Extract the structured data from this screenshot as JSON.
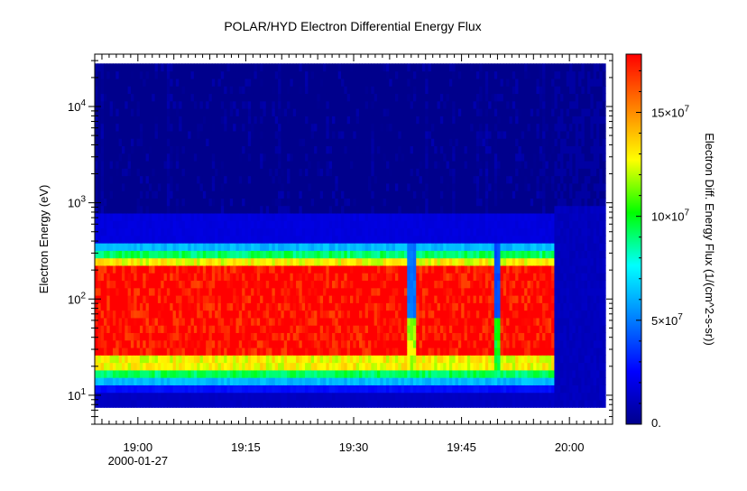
{
  "chart_data": {
    "type": "heatmap",
    "title": "POLAR/HYD  Electron Differential Energy Flux",
    "xlabel": "",
    "ylabel": "Electron Energy (eV)",
    "colorbar_label": "Electron Diff. Energy Flux (1/(cm^2-s-sr))",
    "x_range": [
      "18:54",
      "20:06"
    ],
    "y_range": [
      5,
      35000
    ],
    "y_scale": "log",
    "x_ticks": [
      {
        "time": "19:00",
        "label": "19:00",
        "sublabel": "2000-01-27"
      },
      {
        "time": "19:15",
        "label": "19:15",
        "sublabel": ""
      },
      {
        "time": "19:30",
        "label": "19:30",
        "sublabel": ""
      },
      {
        "time": "19:45",
        "label": "19:45",
        "sublabel": ""
      },
      {
        "time": "20:00",
        "label": "20:00",
        "sublabel": ""
      }
    ],
    "y_ticks": [
      {
        "value": 10,
        "base": "10",
        "exp": "1"
      },
      {
        "value": 100,
        "base": "10",
        "exp": "2"
      },
      {
        "value": 1000,
        "base": "10",
        "exp": "3"
      },
      {
        "value": 10000,
        "base": "10",
        "exp": "4"
      }
    ],
    "colorbar": {
      "min": 0,
      "max": 178000000,
      "ticks": [
        {
          "value": 0,
          "base": "0.",
          "exp": ""
        },
        {
          "value": 50000000,
          "base": "5×10",
          "exp": "7"
        },
        {
          "value": 100000000,
          "base": "10×10",
          "exp": "7"
        },
        {
          "value": 150000000,
          "base": "15×10",
          "exp": "7"
        }
      ],
      "colormap": [
        "#00008c",
        "#0000ff",
        "#0080ff",
        "#00ffff",
        "#00ff00",
        "#ffff00",
        "#ff8000",
        "#ff0000"
      ]
    },
    "data_extent": {
      "t_start": "18:54",
      "t_end": "20:05",
      "e_min": 7.5,
      "e_max": 28000,
      "instrument_end": "19:58"
    },
    "energy_bands_eV": [
      {
        "e_low": 7.5,
        "e_high": 10,
        "flux": 12000000
      },
      {
        "e_low": 10,
        "e_high": 12,
        "flux": 28000000
      },
      {
        "e_low": 12,
        "e_high": 15,
        "flux": 62000000
      },
      {
        "e_low": 15,
        "e_high": 19,
        "flux": 92000000
      },
      {
        "e_low": 19,
        "e_high": 24,
        "flux": 128000000
      },
      {
        "e_low": 24,
        "e_high": 220,
        "flux": 178000000
      },
      {
        "e_low": 220,
        "e_high": 270,
        "flux": 128000000
      },
      {
        "e_low": 270,
        "e_high": 330,
        "flux": 92000000
      },
      {
        "e_low": 330,
        "e_high": 400,
        "flux": 62000000
      },
      {
        "e_low": 400,
        "e_high": 850,
        "flux": 18000000
      },
      {
        "e_low": 850,
        "e_high": 28000,
        "flux": 0
      }
    ],
    "dropouts": [
      {
        "time": "19:38",
        "width_min": 0.5,
        "flux_max": 120000000
      },
      {
        "time": "19:50",
        "width_min": 0.4,
        "flux_max": 100000000
      }
    ]
  }
}
